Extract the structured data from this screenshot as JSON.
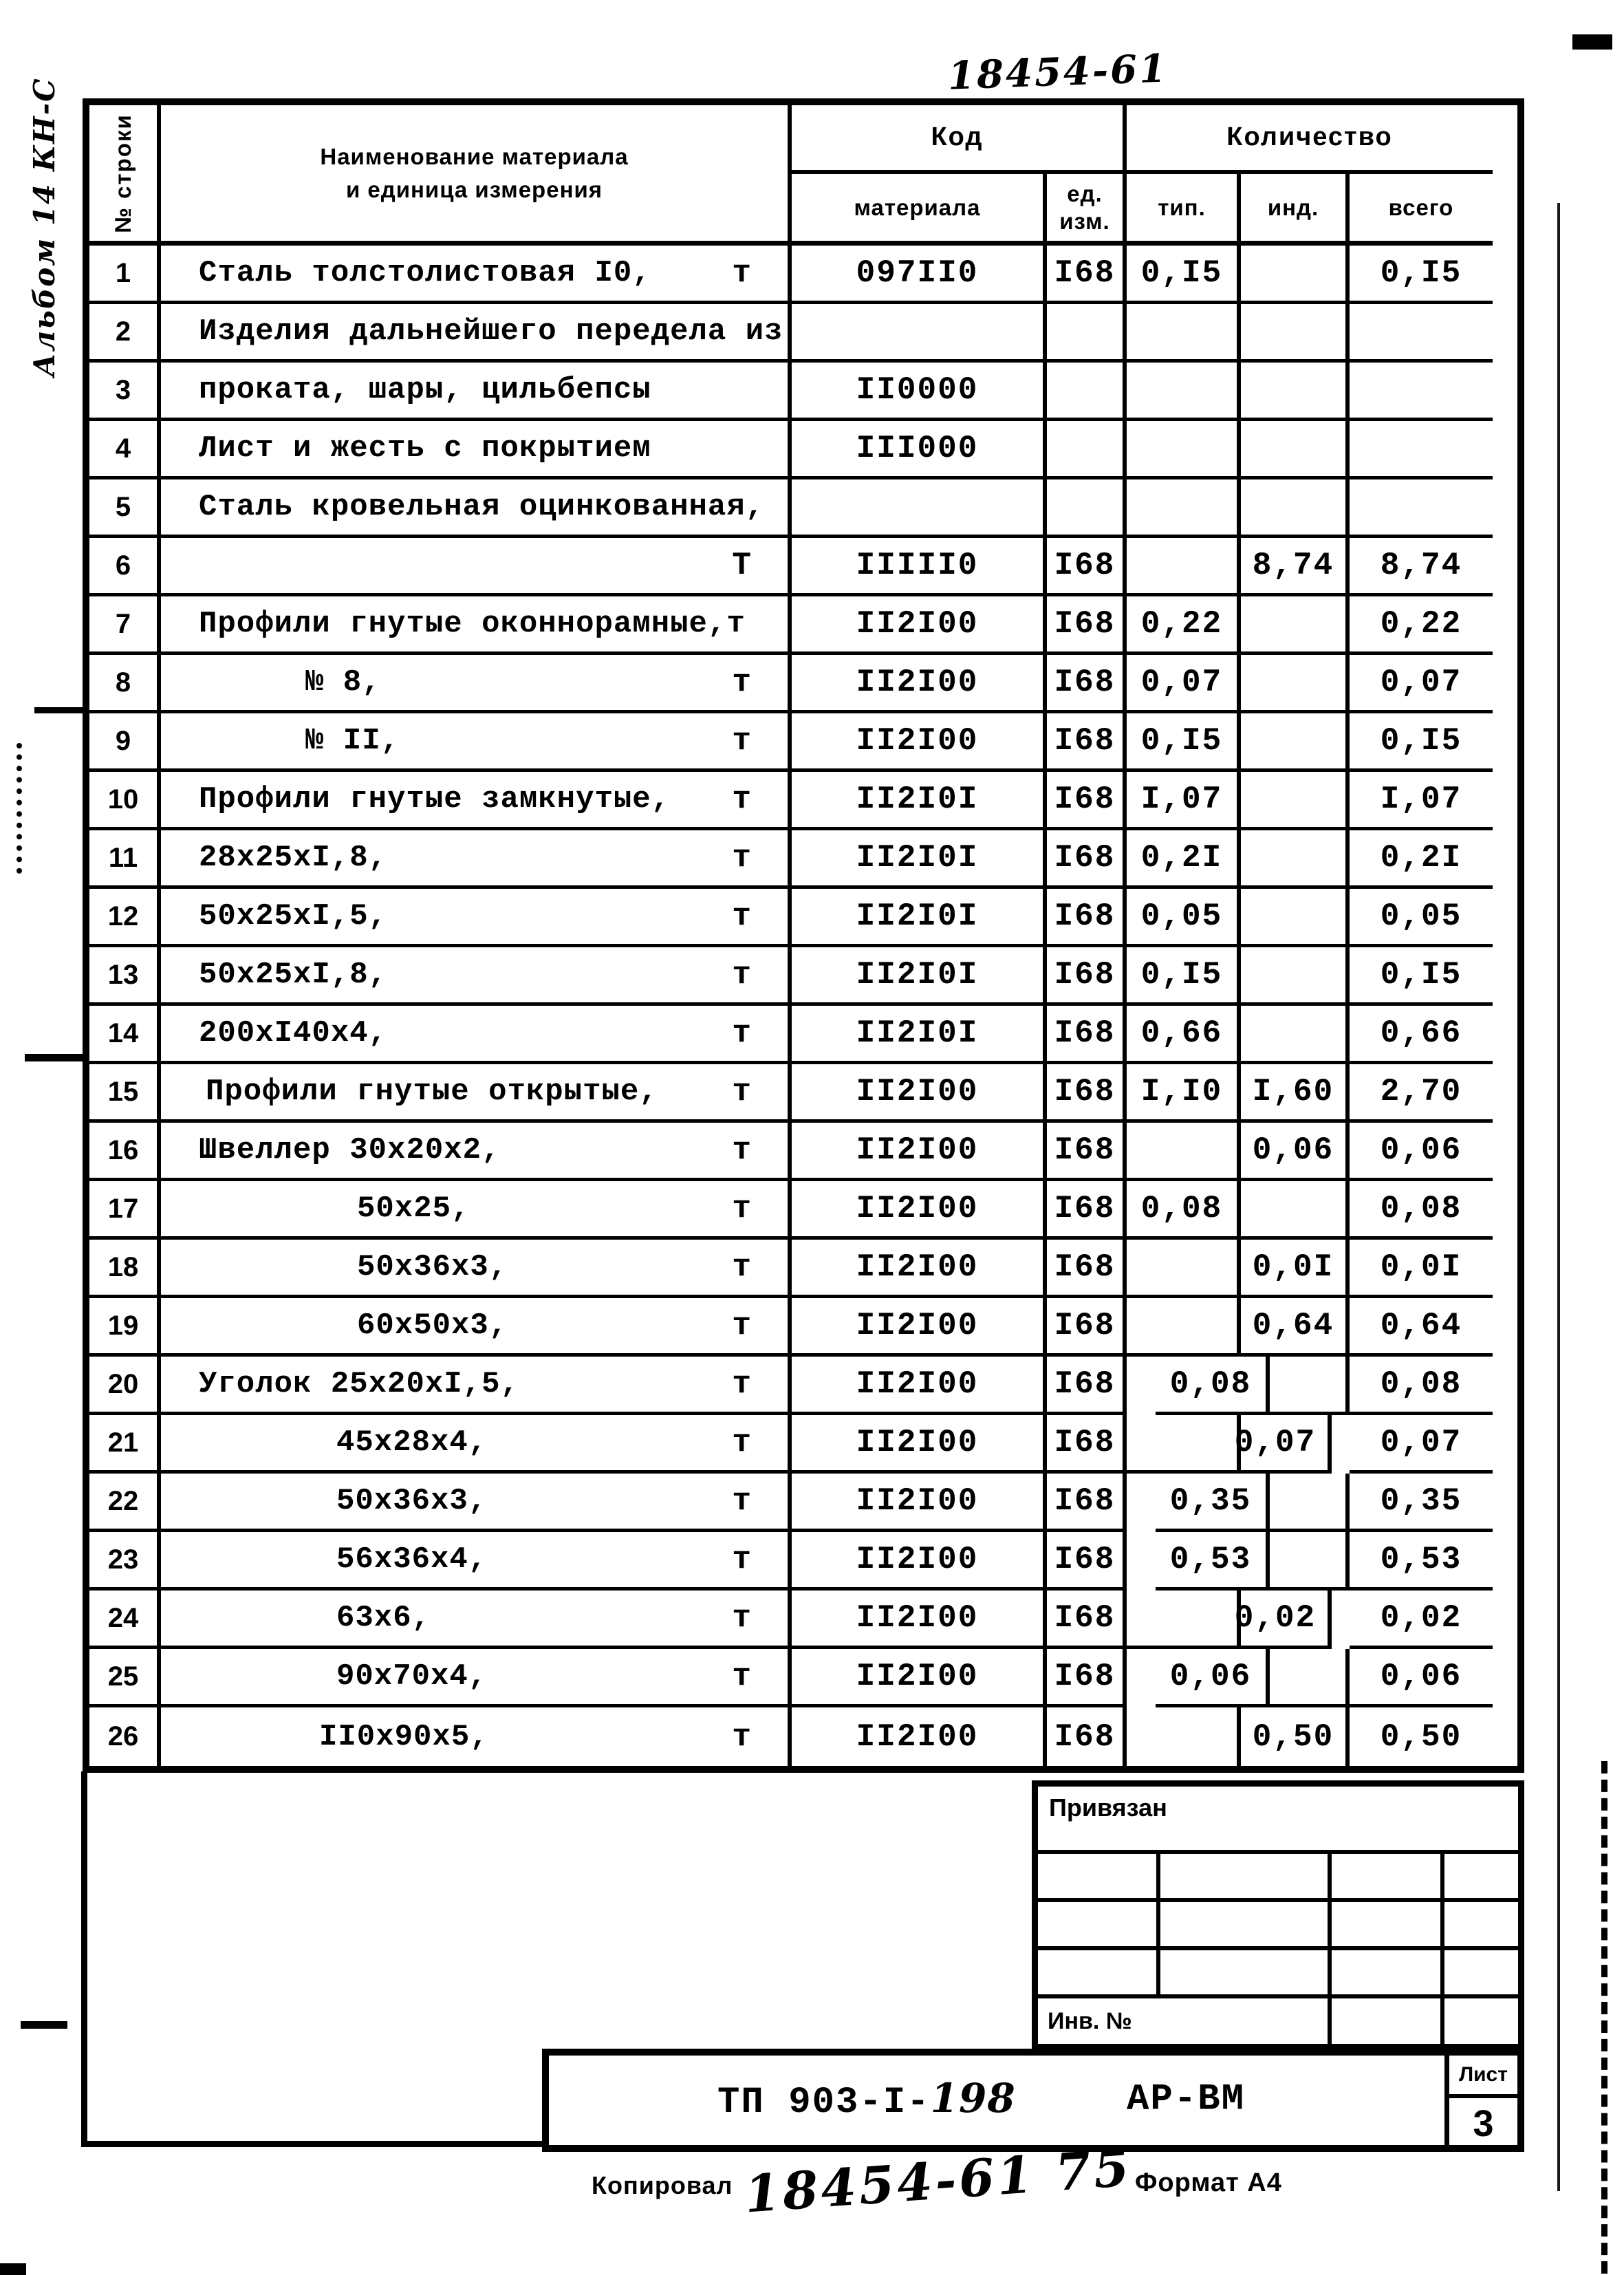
{
  "page": {
    "top_serial": "18454-61",
    "left_note": "Альбом 14 КН-С"
  },
  "table": {
    "headers": {
      "row_no": "№ строки",
      "name_line1": "Наименование материала",
      "name_line2": "и единица измерения",
      "code_group": "Код",
      "code_sub": "материала",
      "unit_line1": "ед.",
      "unit_line2": "изм.",
      "qty_group": "Количество",
      "tip": "тип.",
      "ind": "инд.",
      "vsego": "всего"
    },
    "rows": [
      {
        "n": "1",
        "name": "Сталь толстолистовая I0,",
        "unit": "т",
        "code": "097II0",
        "ed": "I68",
        "tip": "0,I5",
        "ind": "",
        "tot": "0,I5"
      },
      {
        "n": "2",
        "name": "Изделия дальнейшего передела из",
        "unit": "",
        "code": "",
        "ed": "",
        "tip": "",
        "ind": "",
        "tot": ""
      },
      {
        "n": "3",
        "name": "проката, шары, цильбепсы",
        "unit": "",
        "code": "II0000",
        "ed": "",
        "tip": "",
        "ind": "",
        "tot": ""
      },
      {
        "n": "4",
        "name": "Лист и жесть с покрытием",
        "unit": "",
        "code": "III000",
        "ed": "",
        "tip": "",
        "ind": "",
        "tot": ""
      },
      {
        "n": "5",
        "name": "Сталь кровельная оцинкованная,",
        "unit": "",
        "code": "",
        "ed": "",
        "tip": "",
        "ind": "",
        "tot": ""
      },
      {
        "n": "6",
        "name": "",
        "unit": "Т",
        "code": "IIIII0",
        "ed": "I68",
        "tip": "",
        "ind": "8,74",
        "tot": "8,74"
      },
      {
        "n": "7",
        "name": "Профили гнутые оконнорамные,т",
        "unit": "",
        "code": "II2I00",
        "ed": "I68",
        "tip": "0,22",
        "ind": "",
        "tot": "0,22"
      },
      {
        "n": "8",
        "name": "№ 8,",
        "indent": 155,
        "unit": "т",
        "code": "II2I00",
        "ed": "I68",
        "tip": "0,07",
        "ind": "",
        "tot": "0,07"
      },
      {
        "n": "9",
        "name": "№ II,",
        "indent": 155,
        "unit": "т",
        "code": "II2I00",
        "ed": "I68",
        "tip": "0,I5",
        "ind": "",
        "tot": "0,I5"
      },
      {
        "n": "10",
        "name": "Профили гнутые замкнутые,",
        "unit": "т",
        "code": "II2I0I",
        "ed": "I68",
        "tip": "I,07",
        "ind": "",
        "tot": "I,07"
      },
      {
        "n": "11",
        "name": "28x25xI,8,",
        "unit": "т",
        "code": "II2I0I",
        "ed": "I68",
        "tip": "0,2I",
        "ind": "",
        "tot": "0,2I"
      },
      {
        "n": "12",
        "name": "50x25xI,5,",
        "unit": "т",
        "code": "II2I0I",
        "ed": "I68",
        "tip": "0,05",
        "ind": "",
        "tot": "0,05"
      },
      {
        "n": "13",
        "name": "50x25xI,8,",
        "unit": "т",
        "code": "II2I0I",
        "ed": "I68",
        "tip": "0,I5",
        "ind": "",
        "tot": "0,I5"
      },
      {
        "n": "14",
        "name": "200xI40x4,",
        "unit": "т",
        "code": "II2I0I",
        "ed": "I68",
        "tip": "0,66",
        "ind": "",
        "tot": "0,66"
      },
      {
        "n": "15",
        "name": "Профили гнутые открытые,",
        "indent": 10,
        "unit": "т",
        "code": "II2I00",
        "ed": "I68",
        "tip": "I,I0",
        "ind": "I,60",
        "tot": "2,70"
      },
      {
        "n": "16",
        "name": "Швеллер 30x20x2,",
        "unit": "т",
        "code": "II2I00",
        "ed": "I68",
        "tip": "",
        "ind": "0,06",
        "tot": "0,06"
      },
      {
        "n": "17",
        "name": "50x25,",
        "indent": 230,
        "unit": "т",
        "code": "II2I00",
        "ed": "I68",
        "tip": "0,08",
        "ind": "",
        "tot": "0,08"
      },
      {
        "n": "18",
        "name": "50x36x3,",
        "indent": 230,
        "unit": "т",
        "code": "II2I00",
        "ed": "I68",
        "tip": "",
        "ind": "0,0I",
        "tot": "0,0I"
      },
      {
        "n": "19",
        "name": "60x50x3,",
        "indent": 230,
        "unit": "т",
        "code": "II2I00",
        "ed": "I68",
        "tip": "",
        "ind": "0,64",
        "tot": "0,64"
      },
      {
        "n": "20",
        "name": "Уголок 25x20xI,5,",
        "unit": "т",
        "code": "II2I00",
        "ed": "I68",
        "tip": "0,08",
        "tipShift": true,
        "ind": "",
        "tot": "0,08"
      },
      {
        "n": "21",
        "name": "45x28x4,",
        "indent": 200,
        "unit": "т",
        "code": "II2I00",
        "ed": "I68",
        "tip": "",
        "ind": "0,07",
        "indShift": true,
        "tot": "0,07"
      },
      {
        "n": "22",
        "name": "50x36x3,",
        "indent": 200,
        "unit": "т",
        "code": "II2I00",
        "ed": "I68",
        "tip": "0,35",
        "tipShift": true,
        "ind": "",
        "tot": "0,35"
      },
      {
        "n": "23",
        "name": "56x36x4,",
        "indent": 200,
        "unit": "т",
        "code": "II2I00",
        "ed": "I68",
        "tip": "0,53",
        "tipShift": true,
        "ind": "",
        "tot": "0,53"
      },
      {
        "n": "24",
        "name": "63x6,",
        "indent": 200,
        "unit": "т",
        "code": "II2I00",
        "ed": "I68",
        "tip": "",
        "ind": "0,02",
        "indShift": true,
        "tot": "0,02"
      },
      {
        "n": "25",
        "name": "90x70x4,",
        "indent": 200,
        "unit": "т",
        "code": "II2I00",
        "ed": "I68",
        "tip": "0,06",
        "tipShift": true,
        "ind": "",
        "tot": "0,06"
      },
      {
        "n": "26",
        "name": "II0x90x5,",
        "indent": 175,
        "unit": "т",
        "code": "II2I00",
        "ed": "I68",
        "tip": "",
        "ind": "0,50",
        "tot": "0,50"
      }
    ]
  },
  "title_block": {
    "binding_label": "Привязан",
    "inventory_label": "Инв. №",
    "doc_code_typed": "ТП 903-I-",
    "doc_code_hand": "198",
    "doc_set_label": "АР-ВМ",
    "sheet_label": "Лист",
    "sheet_number": "3"
  },
  "footer": {
    "copied_label": "Копировал",
    "copied_serial": "18454-61  75",
    "format_label": "Формат А4"
  }
}
